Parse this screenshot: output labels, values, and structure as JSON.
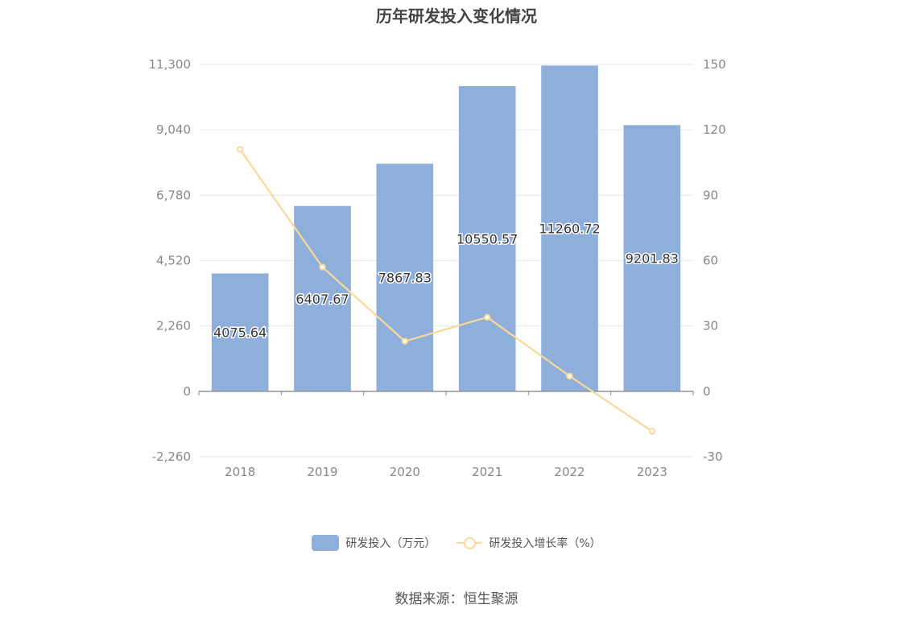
{
  "chart_data": {
    "type": "bar",
    "title": "历年研发投入变化情况",
    "categories": [
      "2018",
      "2019",
      "2020",
      "2021",
      "2022",
      "2023"
    ],
    "series": [
      {
        "name": "研发投入（万元）",
        "type": "bar",
        "axis": "left",
        "color": "#8eaedc",
        "values": [
          4075.64,
          6407.67,
          7867.83,
          10550.57,
          11260.72,
          9201.83
        ],
        "data_labels": [
          "4075.64",
          "6407.67",
          "7867.83",
          "10550.57",
          "11260.72",
          "9201.83"
        ]
      },
      {
        "name": "研发投入增长率（%）",
        "type": "line",
        "axis": "right",
        "color": "#fbd896",
        "values": [
          111,
          57,
          23,
          34,
          7,
          -18.3
        ]
      }
    ],
    "left_axis": {
      "ylim": [
        -2260,
        11300
      ],
      "ticks": [
        -2260,
        0,
        2260,
        4520,
        6780,
        9040,
        11300
      ],
      "tick_labels": [
        "-2,260",
        "0",
        "2,260",
        "4,520",
        "6,780",
        "9,040",
        "11,300"
      ]
    },
    "right_axis": {
      "ylim": [
        -30,
        150
      ],
      "ticks": [
        -30,
        0,
        30,
        60,
        90,
        120,
        150
      ],
      "tick_labels": [
        "-30",
        "0",
        "30",
        "60",
        "90",
        "120",
        "150"
      ]
    },
    "grid": true,
    "legend_position": "bottom"
  },
  "source_note": "数据来源：恒生聚源"
}
